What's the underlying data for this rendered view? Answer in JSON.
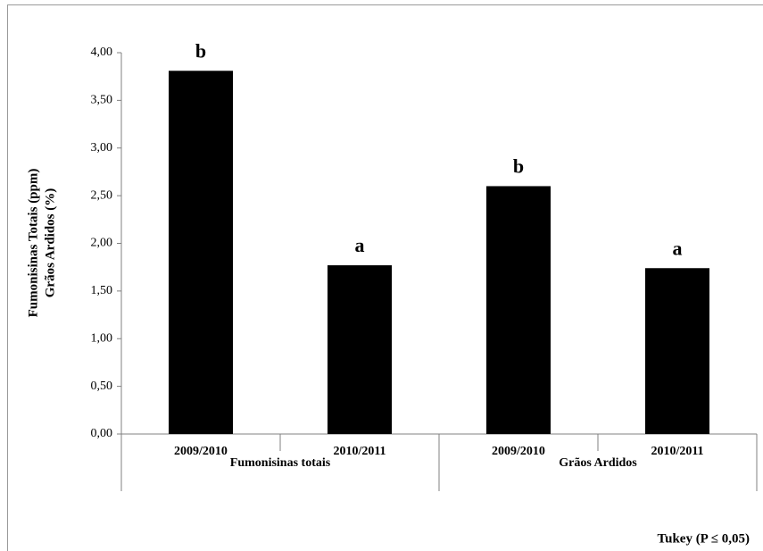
{
  "chart_data": {
    "type": "bar",
    "y_label_lines": [
      "Fumonisinas Totais (ppm)",
      "Grãos Ardidos (%)"
    ],
    "categories": [
      "2009/2010",
      "2010/2011",
      "2009/2010",
      "2010/2011"
    ],
    "groups": [
      "Fumonisinas totais",
      "Grãos Ardidos"
    ],
    "values": [
      3.81,
      1.77,
      2.6,
      1.74
    ],
    "letters": [
      "b",
      "a",
      "b",
      "a"
    ],
    "color": "#000000",
    "ylim": [
      0,
      4
    ],
    "yticks": [
      {
        "value": 0,
        "label": "0,00"
      },
      {
        "value": 0.5,
        "label": "0,50"
      },
      {
        "value": 1,
        "label": "1,00"
      },
      {
        "value": 1.5,
        "label": "1,50"
      },
      {
        "value": 2,
        "label": "2,00"
      },
      {
        "value": 2.5,
        "label": "2,50"
      },
      {
        "value": 3,
        "label": "3,00"
      },
      {
        "value": 3.5,
        "label": "3,50"
      },
      {
        "value": 4,
        "label": "4,00"
      }
    ],
    "grid": false,
    "footnote": "Tukey (P ≤ 0,05)"
  }
}
